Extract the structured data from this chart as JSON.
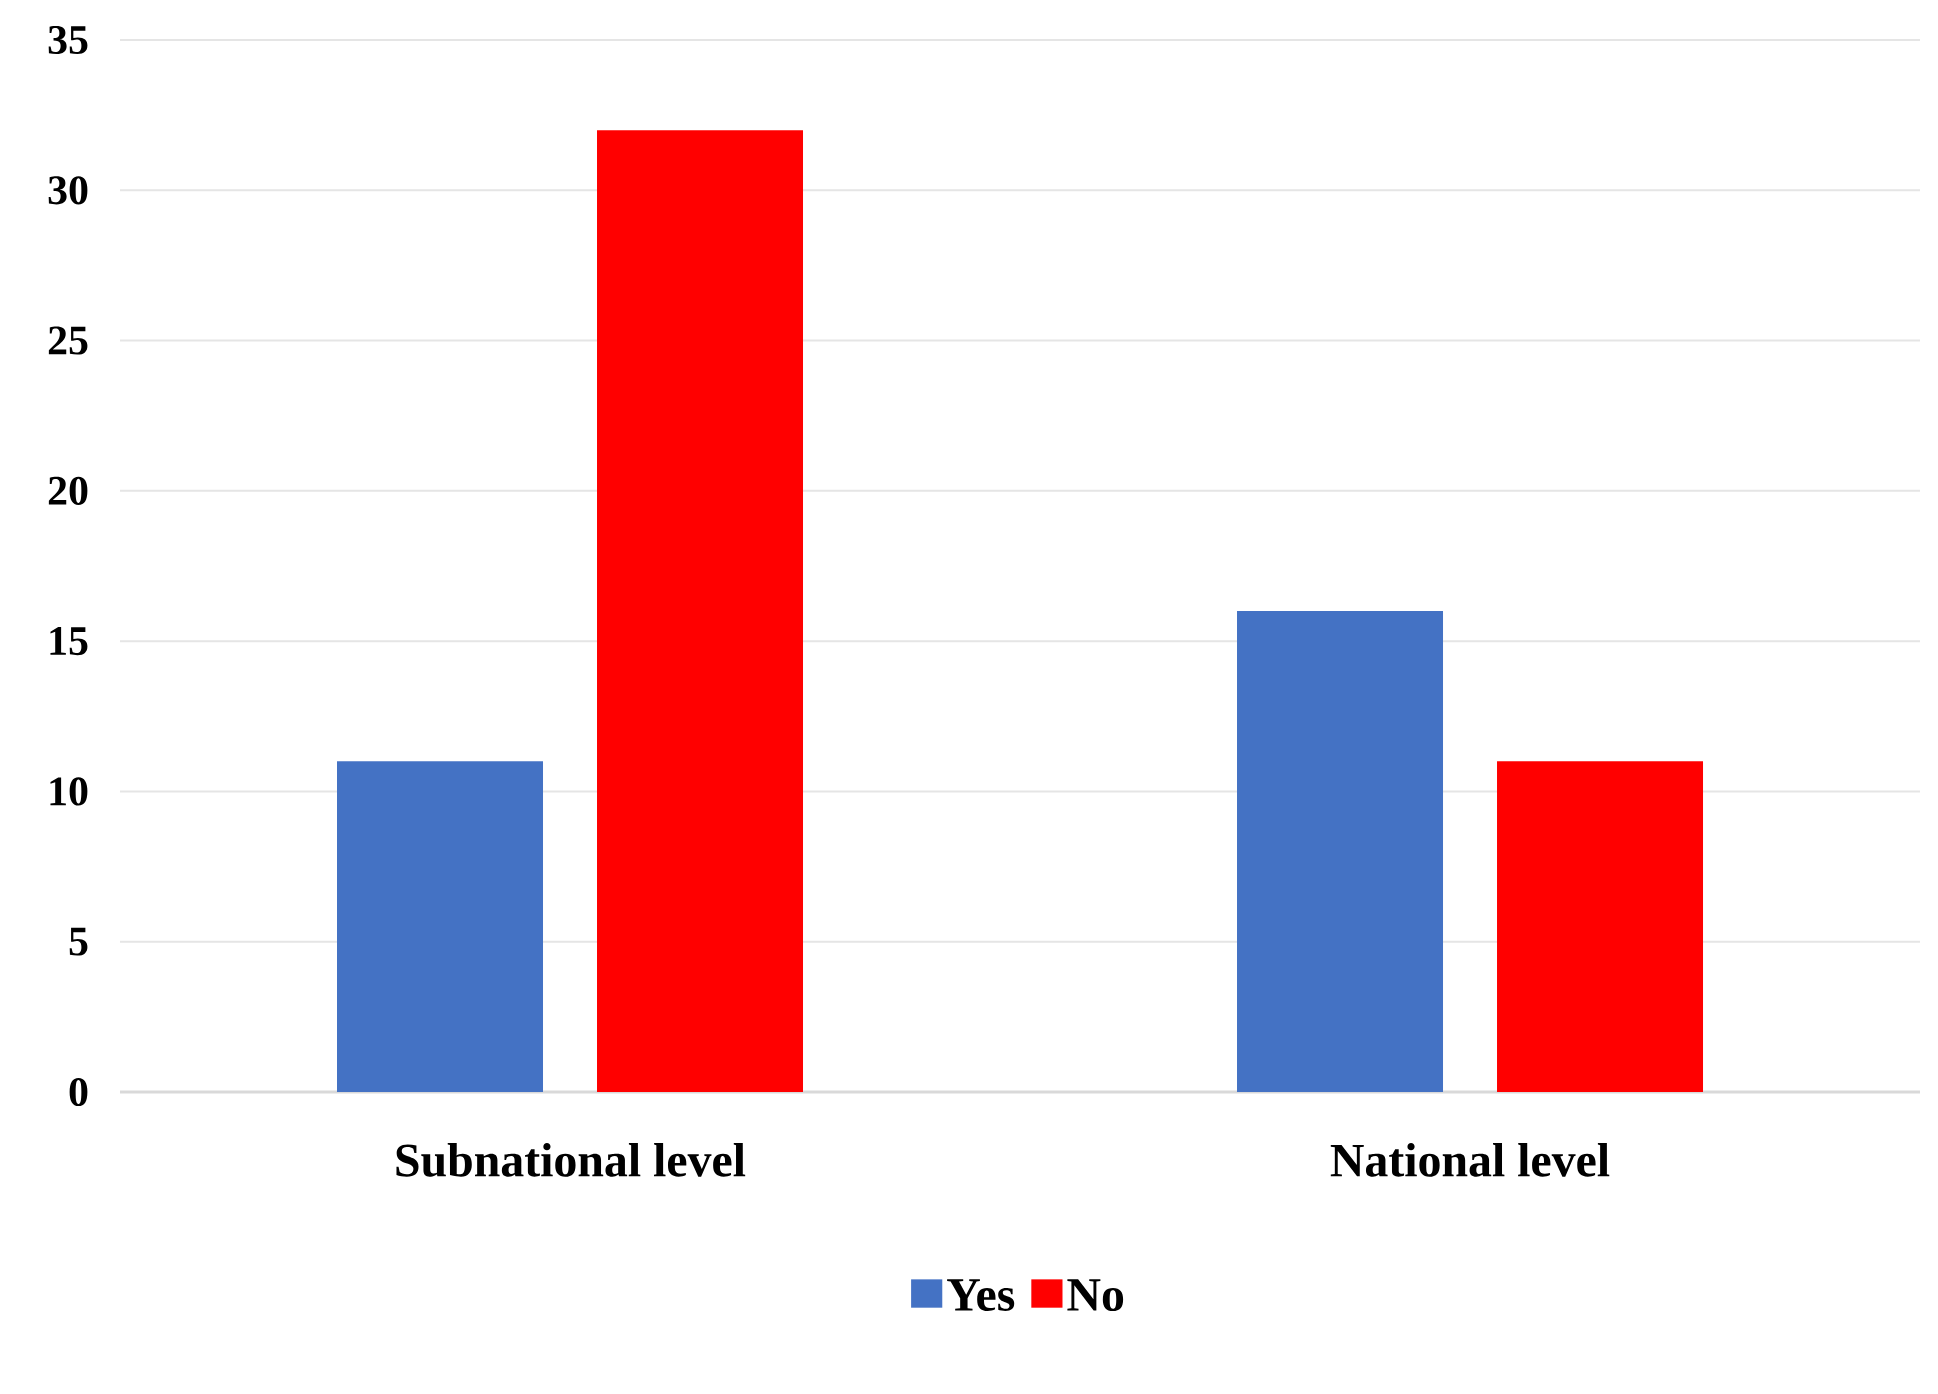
{
  "chart_data": {
    "type": "bar",
    "categories": [
      "Subnational level",
      "National level"
    ],
    "series": [
      {
        "name": "Yes",
        "color": "#4472c4",
        "values": [
          11,
          16
        ]
      },
      {
        "name": "No",
        "color": "#ff0000",
        "values": [
          32,
          11
        ]
      }
    ],
    "ylim": [
      0,
      35
    ],
    "yticks": [
      0,
      5,
      10,
      15,
      20,
      25,
      30,
      35
    ],
    "grid": "y",
    "legend": "bottom"
  }
}
